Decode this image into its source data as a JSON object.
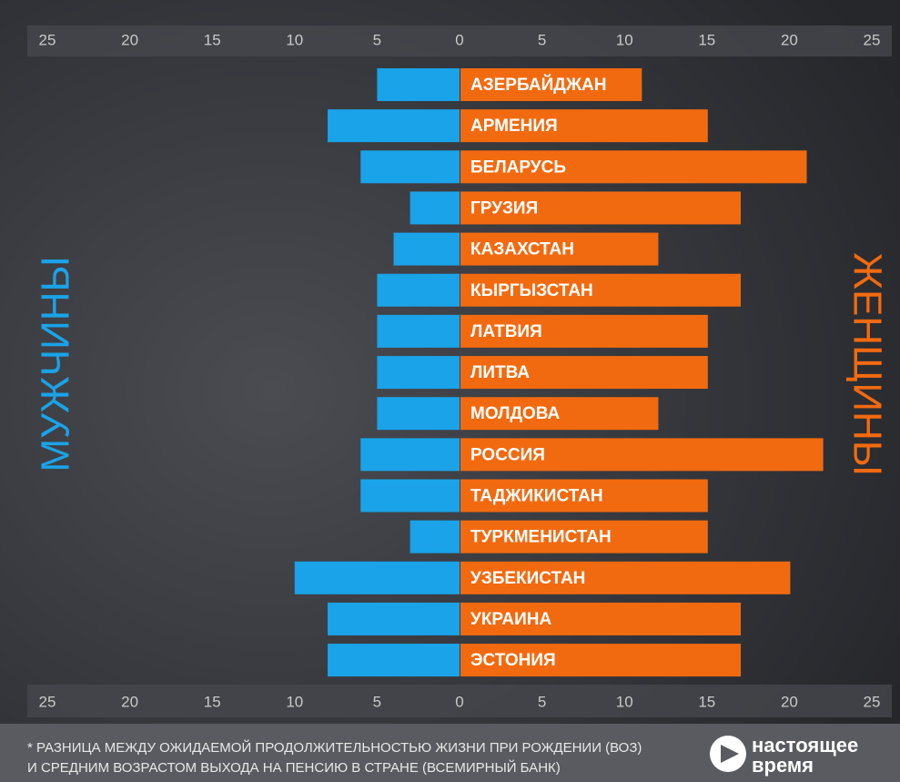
{
  "chart_data": {
    "type": "butterfly",
    "categories": [
      "АЗЕРБАЙДЖАН",
      "АРМЕНИЯ",
      "БЕЛАРУСЬ",
      "ГРУЗИЯ",
      "КАЗАХСТАН",
      "КЫРГЫЗСТАН",
      "ЛАТВИЯ",
      "ЛИТВА",
      "МОЛДОВА",
      "РОССИЯ",
      "ТАДЖИКИСТАН",
      "ТУРКМЕНИСТАН",
      "УЗБЕКИСТАН",
      "УКРАИНА",
      "ЭСТОНИЯ"
    ],
    "series": [
      {
        "name": "МУЖЧИНЫ",
        "color": "#1aa3e8",
        "values": [
          5,
          8,
          6,
          3,
          4,
          5,
          5,
          5,
          5,
          6,
          6,
          3,
          10,
          8,
          8
        ]
      },
      {
        "name": "ЖЕНЩИНЫ",
        "color": "#f26a10",
        "values": [
          11,
          15,
          21,
          17,
          12,
          17,
          15,
          15,
          12,
          22,
          15,
          15,
          20,
          17,
          17
        ]
      }
    ],
    "xlim": [
      0,
      25
    ],
    "xticks": [
      0,
      5,
      10,
      15,
      20,
      25
    ],
    "note": [
      "* РАЗНИЦА МЕЖДУ ОЖИДАЕМОЙ ПРОДОЛЖИТЕЛЬНОСТЬЮ ЖИЗНИ ПРИ РОЖДЕНИИ (ВОЗ)",
      "И СРЕДНИМ ВОЗРАСТОМ ВЫХОДА НА ПЕНСИЮ В СТРАНЕ (ВСЕМИРНЫЙ БАНК)"
    ],
    "logo": [
      "настоящее",
      "время"
    ]
  }
}
